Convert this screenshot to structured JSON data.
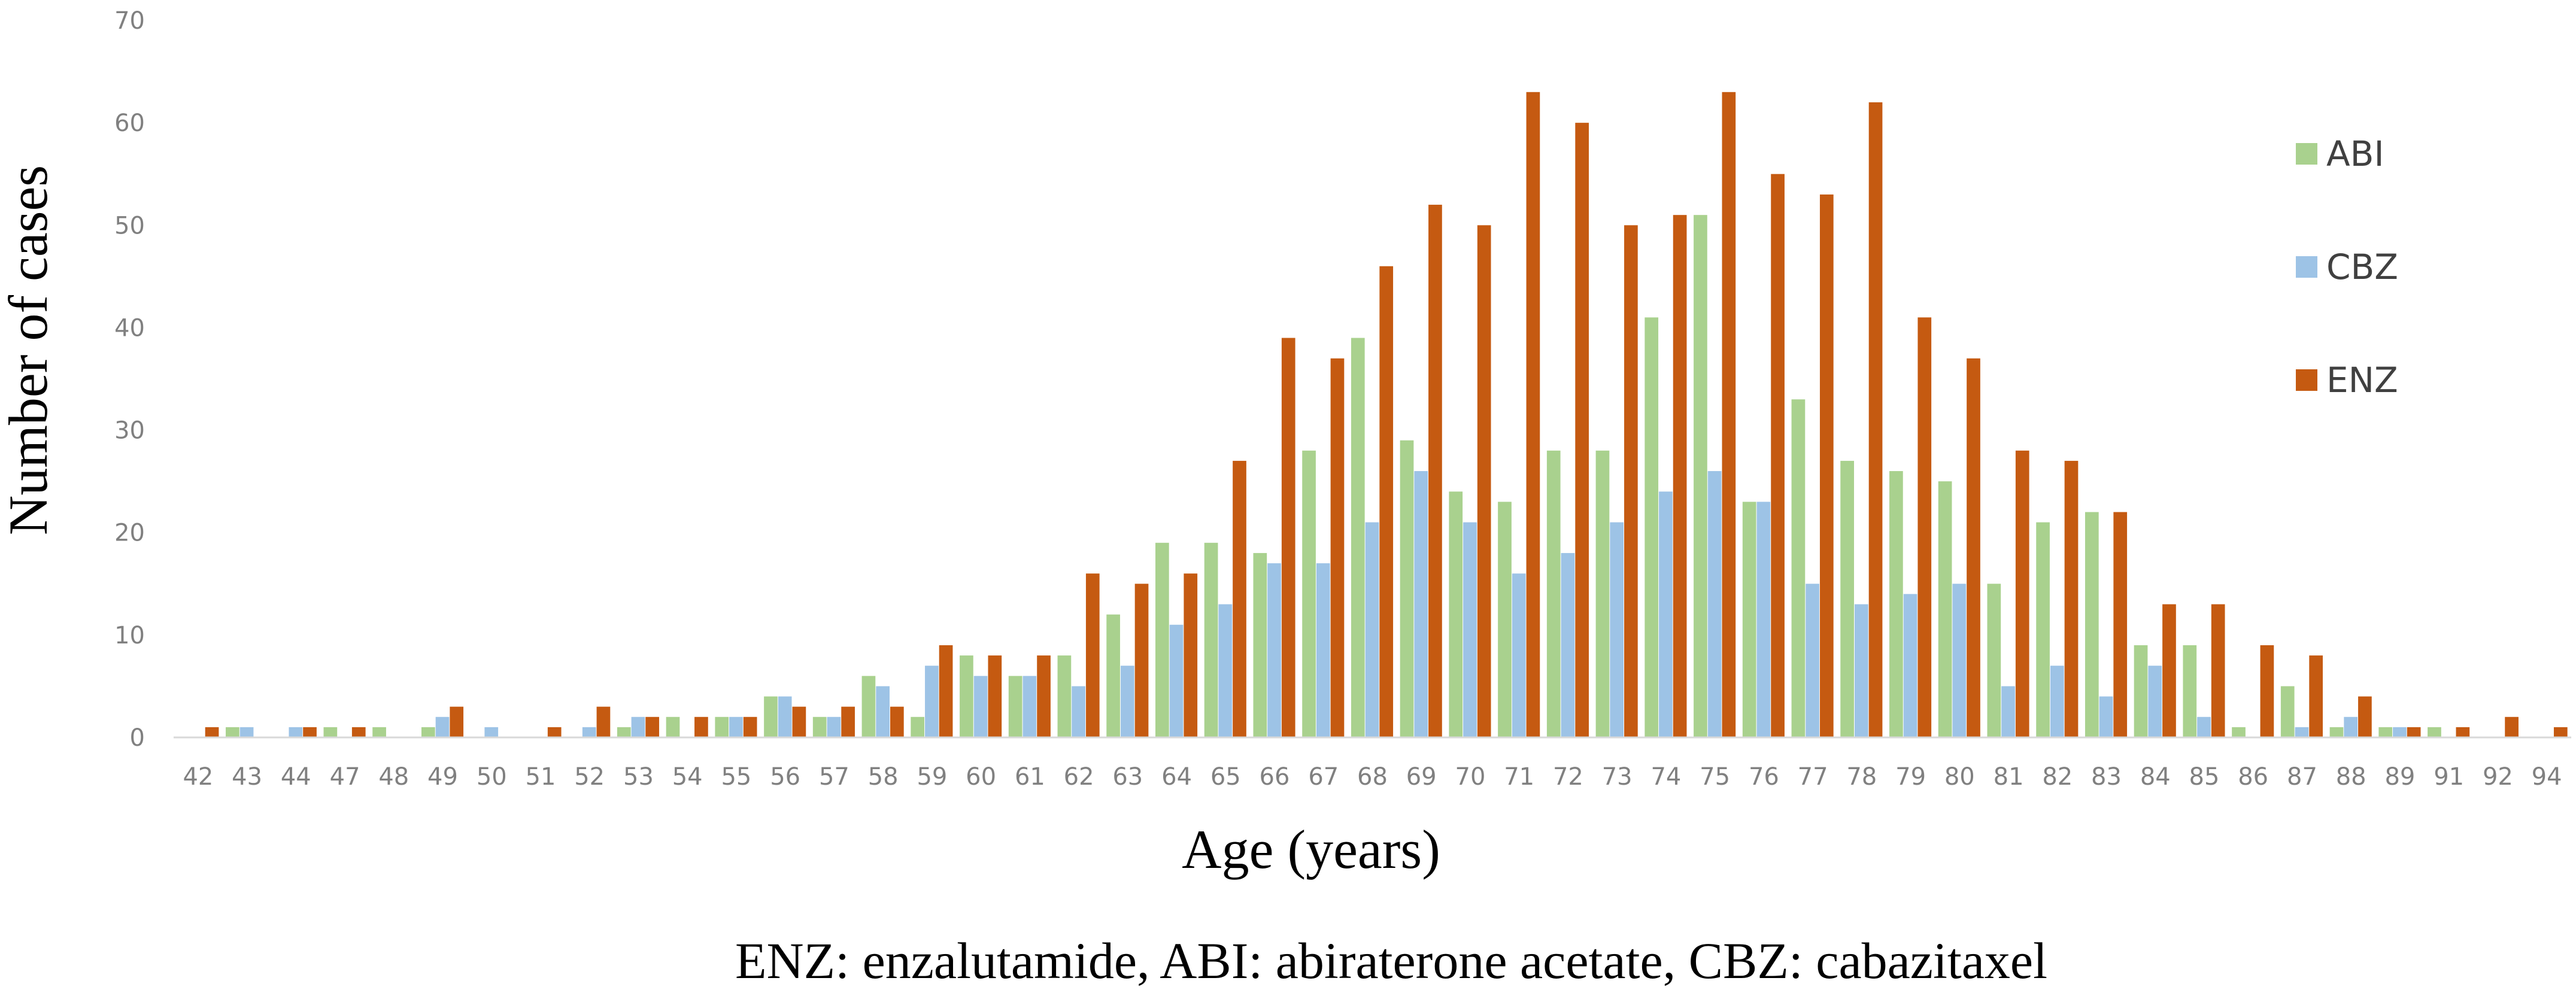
{
  "chart_data": {
    "type": "bar",
    "title": "",
    "xlabel": "Age (years)",
    "ylabel": "Number of cases",
    "ylim": [
      0,
      70
    ],
    "yticks": [
      0,
      10,
      20,
      30,
      40,
      50,
      60,
      70
    ],
    "grid": false,
    "legend_position": "right",
    "categories": [
      "42",
      "43",
      "44",
      "47",
      "48",
      "49",
      "50",
      "51",
      "52",
      "53",
      "54",
      "55",
      "56",
      "57",
      "58",
      "59",
      "60",
      "61",
      "62",
      "63",
      "64",
      "65",
      "66",
      "67",
      "68",
      "69",
      "70",
      "71",
      "72",
      "73",
      "74",
      "75",
      "76",
      "77",
      "78",
      "79",
      "80",
      "81",
      "82",
      "83",
      "84",
      "85",
      "86",
      "87",
      "88",
      "89",
      "91",
      "92",
      "94"
    ],
    "series": [
      {
        "name": "ABI",
        "color": "#a9d18e",
        "values": [
          0,
          1,
          0,
          1,
          1,
          1,
          0,
          0,
          0,
          1,
          2,
          2,
          4,
          2,
          6,
          2,
          8,
          6,
          8,
          12,
          19,
          19,
          18,
          28,
          39,
          29,
          24,
          23,
          28,
          28,
          41,
          51,
          23,
          33,
          27,
          26,
          25,
          15,
          21,
          22,
          9,
          9,
          1,
          5,
          1,
          1,
          1,
          0,
          0
        ]
      },
      {
        "name": "CBZ",
        "color": "#9dc3e6",
        "values": [
          0,
          1,
          1,
          0,
          0,
          2,
          1,
          0,
          1,
          2,
          0,
          2,
          4,
          2,
          5,
          7,
          6,
          6,
          5,
          7,
          11,
          13,
          17,
          17,
          21,
          26,
          21,
          16,
          18,
          21,
          24,
          26,
          23,
          15,
          13,
          14,
          15,
          5,
          7,
          4,
          7,
          2,
          0,
          1,
          2,
          1,
          0,
          0,
          0
        ]
      },
      {
        "name": "ENZ",
        "color": "#c55a11",
        "values": [
          1,
          0,
          1,
          1,
          0,
          3,
          0,
          1,
          3,
          2,
          2,
          2,
          3,
          3,
          3,
          9,
          8,
          8,
          16,
          15,
          16,
          27,
          39,
          37,
          46,
          52,
          50,
          63,
          60,
          50,
          51,
          63,
          55,
          53,
          62,
          41,
          37,
          28,
          27,
          22,
          13,
          13,
          9,
          8,
          4,
          1,
          1,
          2,
          1
        ]
      }
    ],
    "footnote": "ENZ: enzalutamide, ABI: abiraterone acetate, CBZ: cabazitaxel"
  }
}
